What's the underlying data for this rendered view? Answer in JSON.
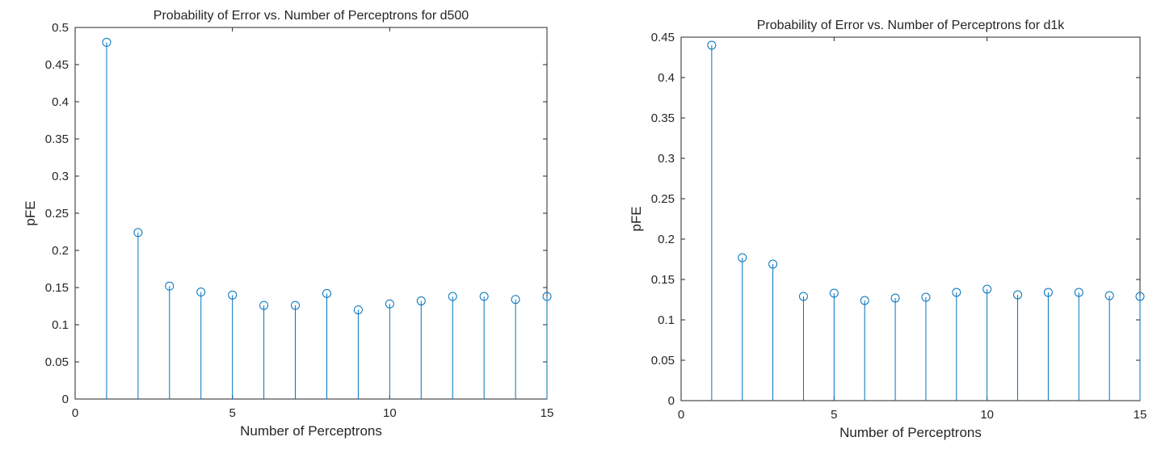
{
  "chart_data": [
    {
      "type": "stem",
      "title": "Probability of Error vs. Number of Perceptrons for d500",
      "xlabel": "Number of Perceptrons",
      "ylabel": "pFE",
      "xlim": [
        0,
        15
      ],
      "ylim": [
        0,
        0.5
      ],
      "xticks": [
        "0",
        "5",
        "10",
        "15"
      ],
      "yticks": [
        "0",
        "0.05",
        "0.1",
        "0.15",
        "0.2",
        "0.25",
        "0.3",
        "0.35",
        "0.4",
        "0.45",
        "0.5"
      ],
      "grid": false,
      "series_color": "#0072BD",
      "x": [
        1,
        2,
        3,
        4,
        5,
        6,
        7,
        8,
        9,
        10,
        11,
        12,
        13,
        14,
        15
      ],
      "y": [
        0.48,
        0.224,
        0.152,
        0.144,
        0.14,
        0.126,
        0.126,
        0.142,
        0.12,
        0.128,
        0.132,
        0.138,
        0.138,
        0.134,
        0.138
      ]
    },
    {
      "type": "stem",
      "title": "Probability of Error vs. Number of Perceptrons for d1k",
      "xlabel": "Number of Perceptrons",
      "ylabel": "pFE",
      "xlim": [
        0,
        15
      ],
      "ylim": [
        0,
        0.45
      ],
      "xticks": [
        "0",
        "5",
        "10",
        "15"
      ],
      "yticks": [
        "0",
        "0.05",
        "0.1",
        "0.15",
        "0.2",
        "0.25",
        "0.3",
        "0.35",
        "0.4",
        "0.45"
      ],
      "grid": false,
      "series_color": "#0072BD",
      "x": [
        1,
        2,
        3,
        4,
        5,
        6,
        7,
        8,
        9,
        10,
        11,
        12,
        13,
        14,
        15
      ],
      "y": [
        0.44,
        0.177,
        0.169,
        0.129,
        0.133,
        0.124,
        0.127,
        0.128,
        0.134,
        0.138,
        0.131,
        0.134,
        0.134,
        0.13,
        0.129
      ]
    }
  ]
}
